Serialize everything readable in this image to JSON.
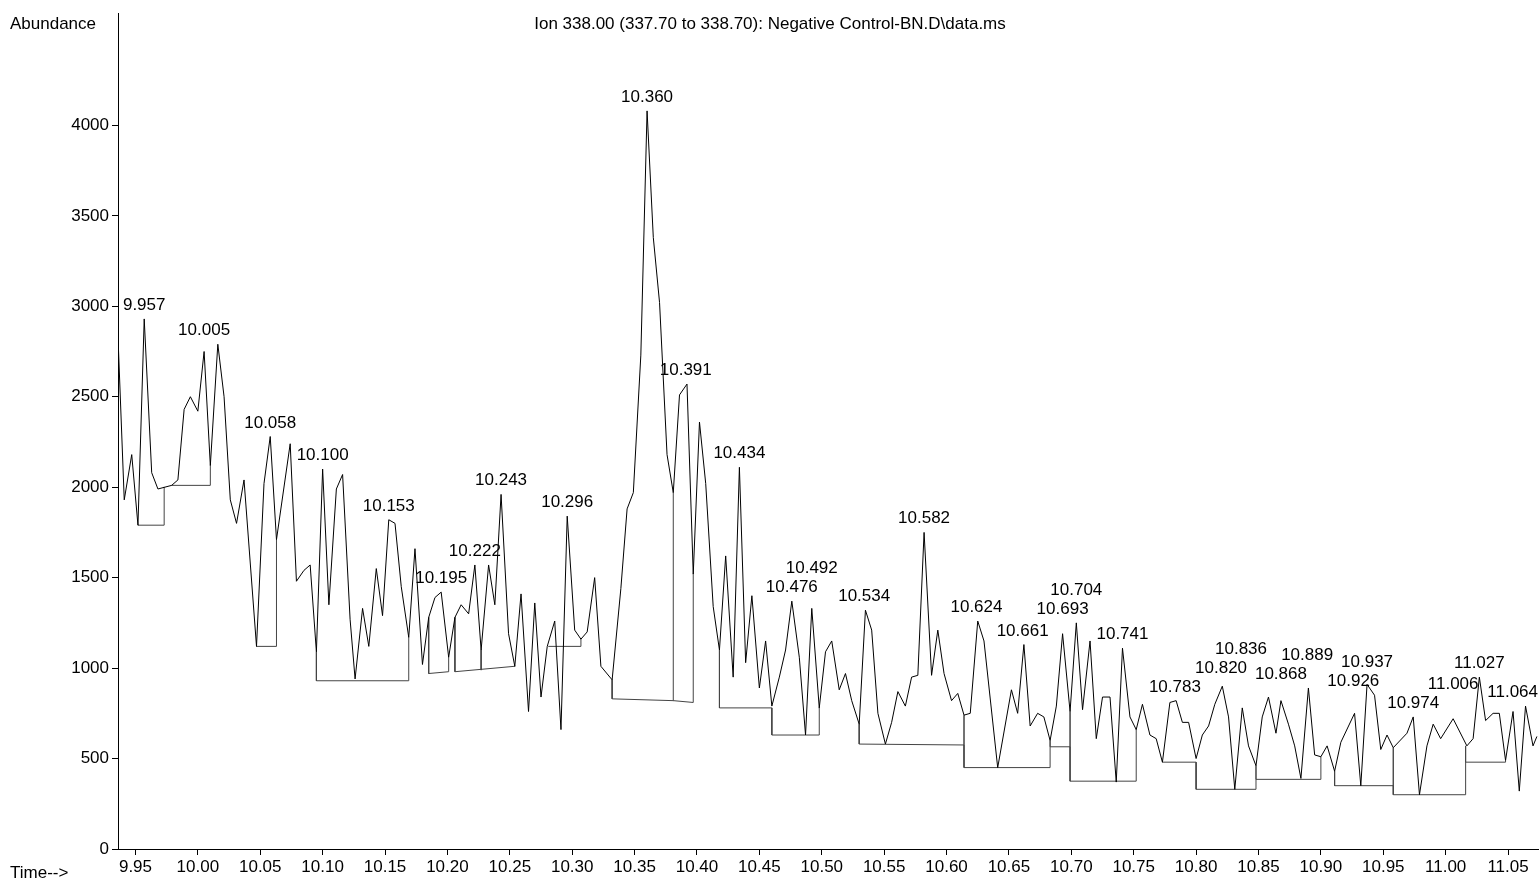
{
  "chart_data": {
    "type": "line",
    "title": "Ion 338.00 (337.70 to 338.70): Negative Control-BN.D\\data.ms",
    "xlabel": "Time-->",
    "ylabel": "Abundance",
    "xlim": [
      9.936,
      11.074
    ],
    "ylim": [
      0,
      4620
    ],
    "xticks": [
      9.95,
      {
        "value": 10,
        "label": "10.00"
      },
      10.05,
      {
        "value": 10.1,
        "label": "10.10"
      },
      10.15,
      {
        "value": 10.2,
        "label": "10.20"
      },
      10.25,
      {
        "value": 10.3,
        "label": "10.30"
      },
      10.35,
      {
        "value": 10.4,
        "label": "10.40"
      },
      10.45,
      {
        "value": 10.5,
        "label": "10.50"
      },
      10.55,
      {
        "value": 10.6,
        "label": "10.60"
      },
      10.65,
      {
        "value": 10.7,
        "label": "10.70"
      },
      10.75,
      {
        "value": 10.8,
        "label": "10.80"
      },
      10.85,
      {
        "value": 10.9,
        "label": "10.90"
      },
      10.95,
      {
        "value": 11,
        "label": "11.00"
      },
      11.05
    ],
    "yticks": [
      0,
      500,
      1000,
      1500,
      2000,
      2500,
      3000,
      3500,
      4000
    ],
    "series": [
      {
        "color": "#000000",
        "x": [
          9.936,
          9.941,
          9.947,
          9.952,
          9.957,
          9.963,
          9.968,
          9.979,
          9.984,
          9.989,
          9.994,
          10.0,
          10.005,
          10.01,
          10.016,
          10.021,
          10.026,
          10.031,
          10.037,
          10.047,
          10.053,
          10.058,
          10.063,
          10.074,
          10.079,
          10.085,
          10.09,
          10.095,
          10.1,
          10.105,
          10.111,
          10.116,
          10.122,
          10.126,
          10.132,
          10.137,
          10.143,
          10.148,
          10.153,
          10.158,
          10.163,
          10.169,
          10.174,
          10.18,
          10.185,
          10.19,
          10.195,
          10.201,
          10.206,
          10.211,
          10.217,
          10.222,
          10.227,
          10.233,
          10.238,
          10.243,
          10.249,
          10.254,
          10.259,
          10.265,
          10.27,
          10.275,
          10.28,
          10.286,
          10.291,
          10.296,
          10.302,
          10.307,
          10.312,
          10.318,
          10.323,
          10.332,
          10.339,
          10.344,
          10.349,
          10.355,
          10.36,
          10.365,
          10.37,
          10.376,
          10.381,
          10.386,
          10.392,
          10.397,
          10.402,
          10.407,
          10.413,
          10.418,
          10.423,
          10.429,
          10.434,
          10.439,
          10.444,
          10.45,
          10.455,
          10.46,
          10.466,
          10.471,
          10.476,
          10.482,
          10.487,
          10.492,
          10.498,
          10.503,
          10.508,
          10.514,
          10.519,
          10.524,
          10.53,
          10.535,
          10.54,
          10.545,
          10.551,
          10.556,
          10.561,
          10.567,
          10.572,
          10.577,
          10.582,
          10.588,
          10.593,
          10.598,
          10.604,
          10.609,
          10.614,
          10.619,
          10.625,
          10.63,
          10.641,
          10.652,
          10.657,
          10.662,
          10.667,
          10.673,
          10.678,
          10.683,
          10.688,
          10.693,
          10.699,
          10.704,
          10.709,
          10.715,
          10.72,
          10.725,
          10.731,
          10.736,
          10.741,
          10.747,
          10.752,
          10.757,
          10.763,
          10.768,
          10.773,
          10.779,
          10.784,
          10.789,
          10.794,
          10.8,
          10.805,
          10.81,
          10.815,
          10.821,
          10.826,
          10.831,
          10.837,
          10.842,
          10.848,
          10.853,
          10.858,
          10.864,
          10.868,
          10.874,
          10.879,
          10.884,
          10.89,
          10.895,
          10.9,
          10.905,
          10.911,
          10.916,
          10.927,
          10.932,
          10.937,
          10.943,
          10.948,
          10.953,
          10.958,
          10.969,
          10.974,
          10.979,
          10.985,
          10.99,
          10.996,
          11.006,
          11.017,
          11.022,
          11.027,
          11.032,
          11.038,
          11.043,
          11.048,
          11.054,
          11.059,
          11.064,
          11.07,
          11.073
        ],
        "values": [
          2830,
          1930,
          2180,
          1790,
          2930,
          2080,
          1990,
          2010,
          2040,
          2430,
          2500,
          2420,
          2750,
          2120,
          2790,
          2500,
          1930,
          1800,
          2040,
          1120,
          2020,
          2280,
          1710,
          2240,
          1480,
          1540,
          1570,
          1090,
          2100,
          1350,
          1990,
          2070,
          1270,
          940,
          1330,
          1120,
          1550,
          1290,
          1820,
          1800,
          1450,
          1170,
          1660,
          1020,
          1280,
          1390,
          1420,
          1060,
          1280,
          1350,
          1300,
          1570,
          1100,
          1570,
          1350,
          1960,
          1190,
          1010,
          1410,
          760,
          1360,
          840,
          1120,
          1260,
          660,
          1840,
          1210,
          1160,
          1200,
          1500,
          1010,
          935,
          1440,
          1880,
          1970,
          2730,
          4080,
          3380,
          3020,
          2180,
          1970,
          2510,
          2570,
          1520,
          2360,
          2020,
          1340,
          1100,
          1620,
          950,
          2110,
          1030,
          1400,
          890,
          1150,
          790,
          950,
          1100,
          1370,
          1060,
          630,
          1330,
          780,
          1090,
          1150,
          880,
          970,
          820,
          690,
          1320,
          1210,
          750,
          580,
          700,
          870,
          790,
          950,
          960,
          1750,
          960,
          1210,
          970,
          820,
          860,
          740,
          750,
          1260,
          1150,
          450,
          880,
          750,
          1130,
          680,
          750,
          730,
          600,
          790,
          1190,
          760,
          1250,
          770,
          1150,
          610,
          840,
          840,
          370,
          1110,
          730,
          660,
          800,
          630,
          610,
          480,
          810,
          820,
          700,
          700,
          500,
          630,
          680,
          800,
          900,
          730,
          330,
          780,
          570,
          460,
          730,
          840,
          640,
          820,
          690,
          570,
          390,
          890,
          520,
          510,
          570,
          430,
          590,
          750,
          350,
          910,
          850,
          550,
          630,
          560,
          640,
          730,
          300,
          570,
          690,
          610,
          720,
          570,
          610,
          950,
          710,
          750,
          750,
          490,
          760,
          320,
          790,
          570,
          620
        ]
      },
      {
        "color": "#444444",
        "x": [
          9.952,
          9.973,
          9.973,
          null,
          9.979,
          10.01,
          10.01,
          null,
          10.047,
          10.063,
          10.063,
          null,
          10.095,
          10.095,
          10.169,
          10.169,
          null,
          10.185,
          10.185,
          10.201,
          10.201,
          null,
          10.206,
          10.206,
          10.254,
          null,
          10.227,
          10.227,
          null,
          10.281,
          10.307,
          10.307,
          null,
          10.332,
          10.332,
          10.381,
          10.381,
          null,
          10.381,
          10.397,
          10.397,
          null,
          10.418,
          10.418,
          10.46,
          10.46,
          10.498,
          10.498,
          null,
          10.53,
          10.53,
          10.614,
          10.614,
          10.614,
          10.683,
          10.683,
          10.683,
          10.699,
          10.699,
          10.699,
          10.752,
          10.752,
          null,
          10.773,
          10.8,
          10.8,
          10.848,
          10.848,
          10.848,
          10.9,
          10.9,
          null,
          10.911,
          10.911,
          10.958,
          10.958,
          10.958,
          11.016,
          11.016,
          11.016,
          11.048,
          11.048
        ],
        "values": [
          1790,
          1790,
          2000,
          null,
          2010,
          2010,
          2120,
          null,
          1120,
          1120,
          1710,
          null,
          1090,
          930,
          930,
          1170,
          null,
          1280,
          970,
          980,
          1060,
          null,
          1280,
          980,
          1010,
          null,
          1100,
          990,
          null,
          1120,
          1120,
          1160,
          null,
          935,
          830,
          820,
          1970,
          null,
          820,
          810,
          1520,
          null,
          1100,
          780,
          780,
          630,
          630,
          780,
          null,
          690,
          580,
          575,
          740,
          450,
          450,
          600,
          565,
          565,
          760,
          375,
          375,
          660,
          null,
          480,
          480,
          330,
          330,
          460,
          385,
          385,
          510,
          null,
          430,
          350,
          350,
          560,
          300,
          300,
          570,
          480,
          480,
          490
        ]
      }
    ],
    "annotations": [
      {
        "text": "9.957",
        "x": 9.957,
        "y": 2930
      },
      {
        "text": "10.005",
        "x": 10.005,
        "y": 2750
      },
      {
        "text": "10.058",
        "x": 10.058,
        "y": 2280
      },
      {
        "text": "10.100",
        "x": 10.1,
        "y": 2100
      },
      {
        "text": "10.153",
        "x": 10.153,
        "y": 1820
      },
      {
        "text": "10.195",
        "x": 10.195,
        "y": 1420
      },
      {
        "text": "10.222",
        "x": 10.222,
        "y": 1570
      },
      {
        "text": "10.243",
        "x": 10.243,
        "y": 1960
      },
      {
        "text": "10.296",
        "x": 10.296,
        "y": 1840
      },
      {
        "text": "10.360",
        "x": 10.36,
        "y": 4080
      },
      {
        "text": "10.391",
        "x": 10.391,
        "y": 2570
      },
      {
        "text": "10.434",
        "x": 10.434,
        "y": 2110
      },
      {
        "text": "10.476",
        "x": 10.476,
        "y": 1370
      },
      {
        "text": "10.492",
        "x": 10.492,
        "y": 1330
      },
      {
        "text": "10.534",
        "x": 10.534,
        "y": 1320
      },
      {
        "text": "10.582",
        "x": 10.582,
        "y": 1750
      },
      {
        "text": "10.624",
        "x": 10.624,
        "y": 1260
      },
      {
        "text": "10.661",
        "x": 10.661,
        "y": 1130
      },
      {
        "text": "10.693",
        "x": 10.693,
        "y": 1190
      },
      {
        "text": "10.704",
        "x": 10.704,
        "y": 1250
      },
      {
        "text": "10.741",
        "x": 10.741,
        "y": 1110
      },
      {
        "text": "10.783",
        "x": 10.783,
        "y": 820
      },
      {
        "text": "10.820",
        "x": 10.82,
        "y": 900
      },
      {
        "text": "10.836",
        "x": 10.836,
        "y": 780
      },
      {
        "text": "10.868",
        "x": 10.868,
        "y": 820
      },
      {
        "text": "10.889",
        "x": 10.889,
        "y": 890
      },
      {
        "text": "10.926",
        "x": 10.926,
        "y": 750
      },
      {
        "text": "10.937",
        "x": 10.937,
        "y": 910
      },
      {
        "text": "10.974",
        "x": 10.974,
        "y": 730
      },
      {
        "text": "11.006",
        "x": 11.006,
        "y": 720
      },
      {
        "text": "11.027",
        "x": 11.027,
        "y": 950
      },
      {
        "text": "11.064",
        "x": 11.064,
        "y": 790
      }
    ]
  }
}
